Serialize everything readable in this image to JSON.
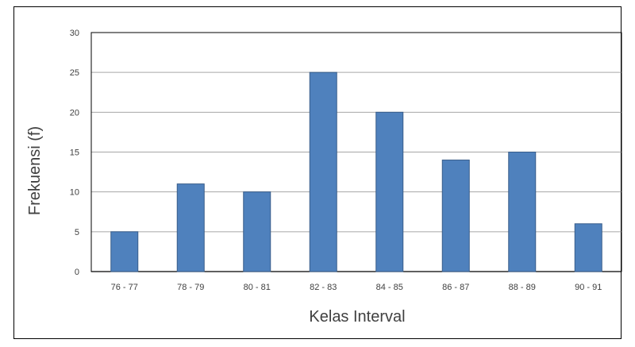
{
  "chart_data": {
    "type": "bar",
    "title": "",
    "xlabel": "Kelas Interval",
    "ylabel": "Frekuensi (f)",
    "categories": [
      "76 - 77",
      "78 - 79",
      "80 - 81",
      "82 - 83",
      "84 - 85",
      "86 - 87",
      "88 - 89",
      "90 - 91"
    ],
    "values": [
      5,
      11,
      10,
      25,
      20,
      14,
      15,
      6
    ],
    "ylim": [
      0,
      30
    ],
    "yticks": [
      0,
      5,
      10,
      15,
      20,
      25,
      30
    ],
    "grid": true,
    "legend": "none",
    "bar_color": "#4F81BD",
    "bar_edge_color": "#385D8A",
    "grid_color": "#A6A6A6"
  }
}
